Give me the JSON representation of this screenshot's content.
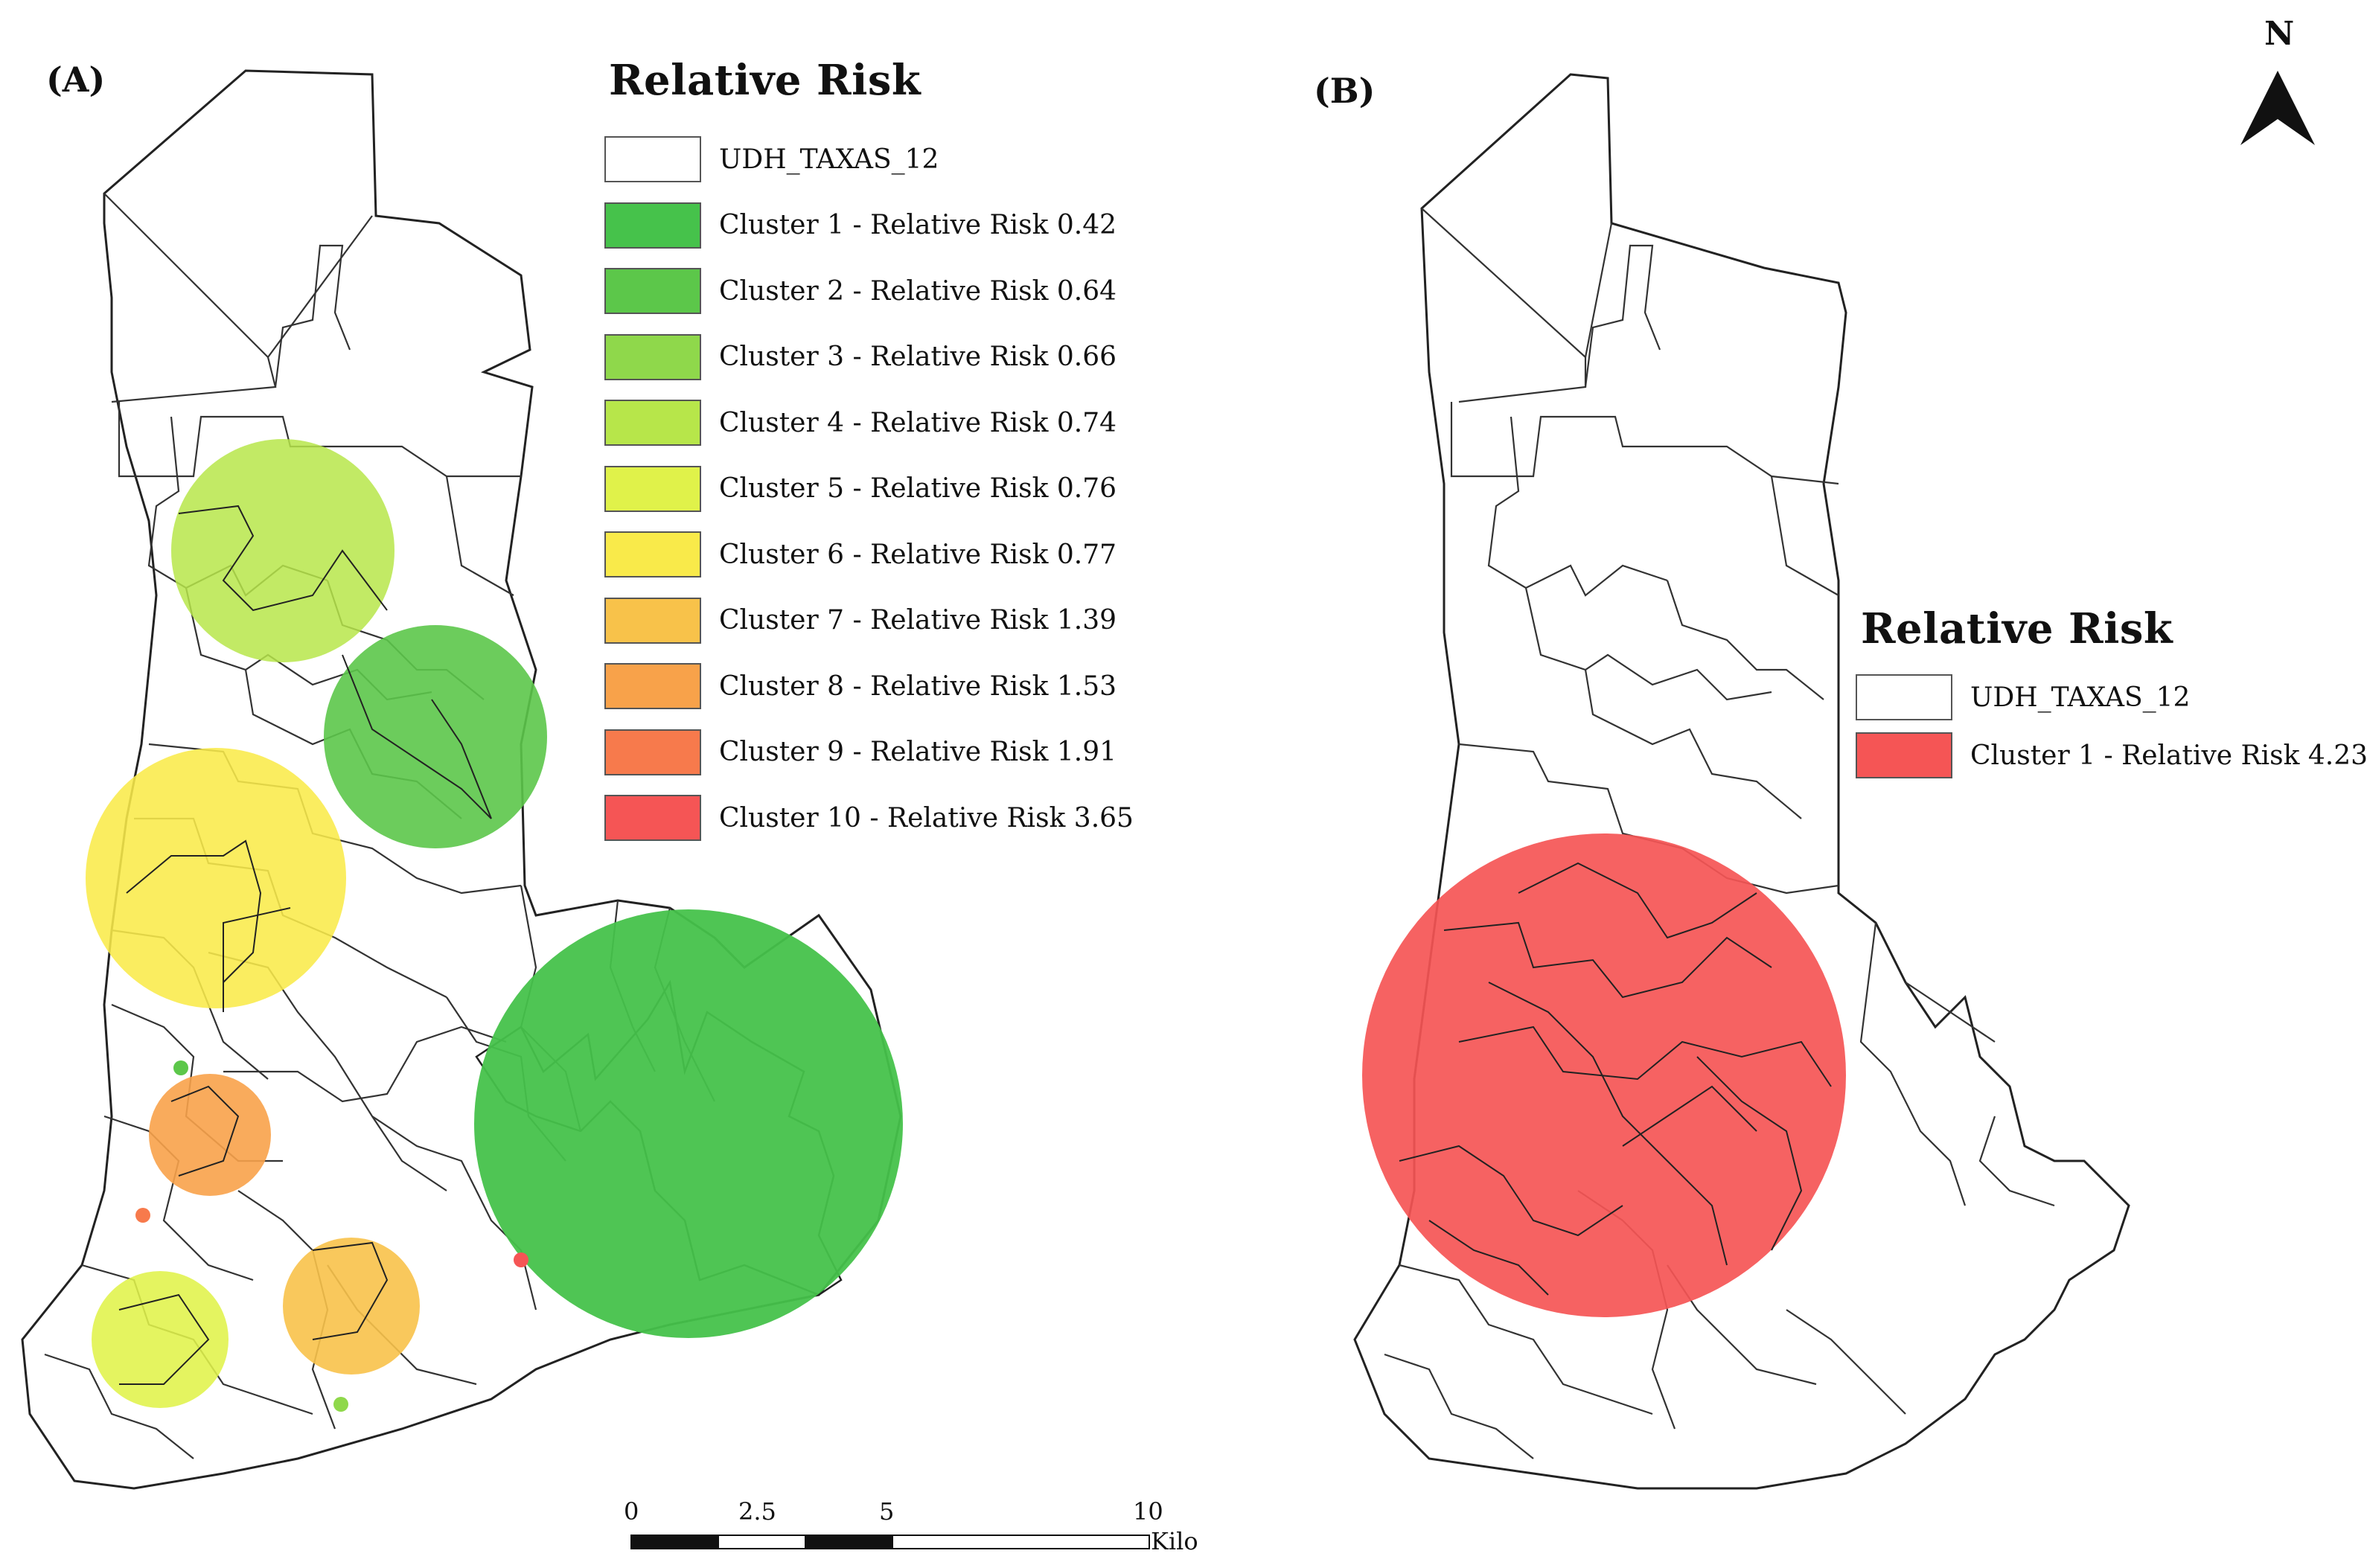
{
  "panel_a": {
    "label": "(A)",
    "legend_title": "Relative Risk",
    "legend": [
      {
        "label": "UDH_TAXAS_12",
        "color": "#ffffff"
      },
      {
        "label": "Cluster 1 - Relative Risk 0.42",
        "color": "#46c24b"
      },
      {
        "label": "Cluster 2 - Relative Risk 0.64",
        "color": "#5cc74a"
      },
      {
        "label": "Cluster 3 - Relative Risk 0.66",
        "color": "#8fd84b"
      },
      {
        "label": "Cluster 4 - Relative Risk 0.74",
        "color": "#b7e64a"
      },
      {
        "label": "Cluster 5 - Relative Risk 0.76",
        "color": "#e0f24a"
      },
      {
        "label": "Cluster 6 - Relative Risk 0.77",
        "color": "#f9ea4a"
      },
      {
        "label": "Cluster 7 - Relative Risk 1.39",
        "color": "#f8c24a"
      },
      {
        "label": "Cluster 8 - Relative Risk 1.53",
        "color": "#f8a24a"
      },
      {
        "label": "Cluster 9 - Relative Risk 1.91",
        "color": "#f77a4c"
      },
      {
        "label": "Cluster 10 - Relative Risk 3.65",
        "color": "#f55555"
      }
    ]
  },
  "panel_b": {
    "label": "(B)",
    "legend_title": "Relative Risk",
    "legend": [
      {
        "label": "UDH_TAXAS_12",
        "color": "#ffffff"
      },
      {
        "label": "Cluster 1 - Relative Risk 4.23",
        "color": "#f55555"
      }
    ]
  },
  "north_arrow": {
    "label": "N"
  },
  "scale_bar": {
    "ticks": [
      "0",
      "2.5",
      "5",
      "10"
    ],
    "unit": "Kilo"
  }
}
